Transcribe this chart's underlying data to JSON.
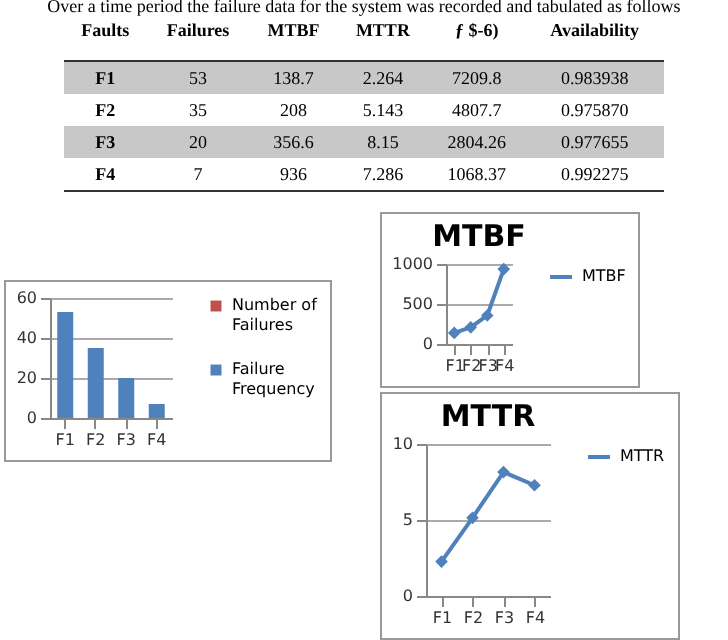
{
  "chart_data": [
    {
      "type": "other",
      "title": "Over a time period the failure data for the system was recorded and tabulated as follows",
      "annotations": [
        "Faults",
        "Failures",
        "MTBF",
        "MTTR",
        "ƒ $-6)",
        "Availability",
        "F1",
        "53",
        "138.7",
        "2.264",
        "7209.8",
        "0.983938",
        "F2",
        "35",
        "208",
        "5.143",
        "4807.7",
        "0.975870",
        "F3",
        "20",
        "356.6",
        "8.15",
        "2804.26",
        "0.977655",
        "F4",
        "7",
        "936",
        "7.286",
        "1068.37",
        "0.992275"
      ]
    },
    {
      "type": "bar",
      "categories": [
        "F1",
        "F2",
        "F3",
        "F4"
      ],
      "series": [
        {
          "name": "Number of Failures",
          "color": "#c0504d",
          "values": [
            null,
            null,
            null,
            null
          ]
        },
        {
          "name": "Failure Frequency",
          "color": "#4f81bd",
          "values": [
            53,
            35,
            20,
            7
          ]
        }
      ],
      "ylim": [
        0,
        60
      ],
      "yticks": [
        0,
        20,
        40,
        60
      ],
      "grid": "y",
      "legend": "right"
    },
    {
      "type": "line",
      "title": "MTBF",
      "categories": [
        "F1",
        "F2",
        "F3",
        "F4"
      ],
      "series": [
        {
          "name": "MTBF",
          "color": "#4f81bd",
          "values": [
            138.7,
            208,
            356.6,
            936
          ]
        }
      ],
      "ylim": [
        0,
        1000
      ],
      "yticks": [
        0,
        500,
        1000
      ],
      "grid": "y",
      "legend": "right",
      "marker": "diamond"
    },
    {
      "type": "line",
      "title": "MTTR",
      "categories": [
        "F1",
        "F2",
        "F3",
        "F4"
      ],
      "series": [
        {
          "name": "MTTR",
          "color": "#4f81bd",
          "values": [
            2.264,
            5.143,
            8.15,
            7.286
          ]
        }
      ],
      "ylim": [
        0,
        10
      ],
      "yticks": [
        0,
        5,
        10
      ],
      "grid": "y",
      "legend": "right",
      "marker": "diamond"
    }
  ]
}
